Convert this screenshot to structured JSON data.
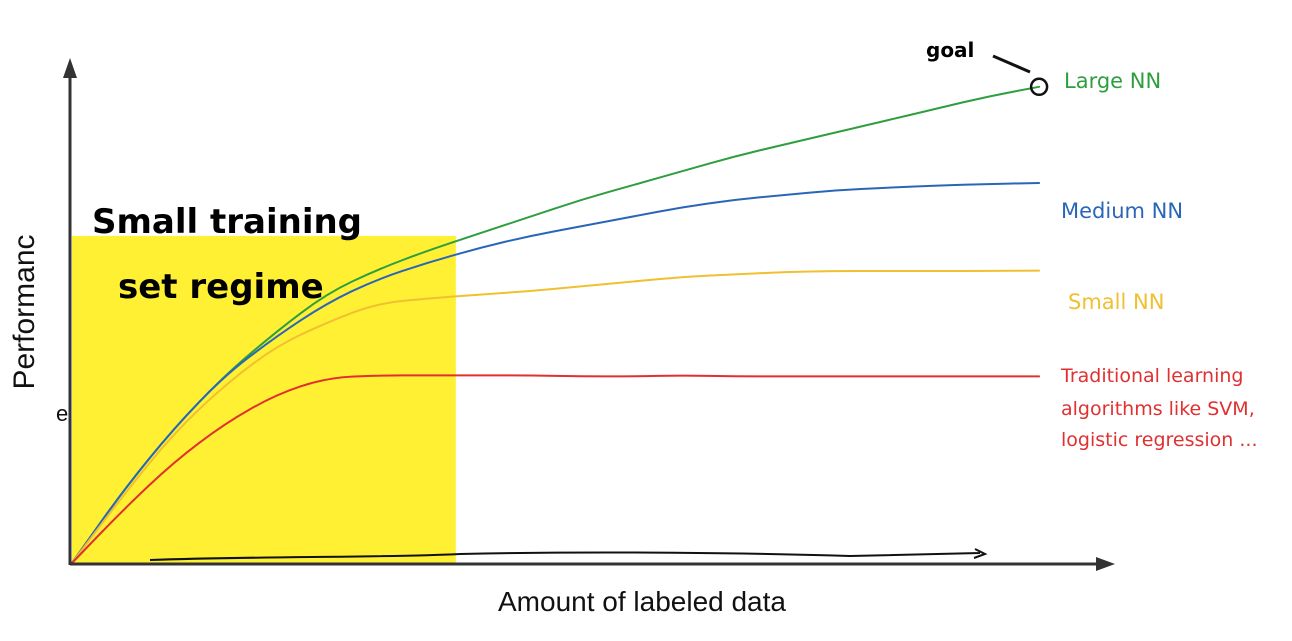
{
  "chart_data": {
    "type": "line",
    "title": "",
    "xlabel": "Amount of labeled data",
    "ylabel": "Performance",
    "xlim": [
      0,
      100
    ],
    "ylim": [
      0,
      100
    ],
    "x": [
      0,
      5,
      10,
      15,
      20,
      25,
      30,
      35,
      40,
      45,
      50,
      55,
      60,
      65,
      70,
      75,
      80,
      85,
      90,
      95
    ],
    "series": [
      {
        "name": "Large NN",
        "color": "#2e9e3e",
        "values": [
          0,
          15,
          28,
          39,
          48,
          56,
          61,
          65,
          68.5,
          72,
          75.5,
          78.5,
          81.5,
          84.5,
          87,
          89.5,
          92,
          94.5,
          97,
          99
        ]
      },
      {
        "name": "Medium NN",
        "color": "#2a66b8",
        "values": [
          0,
          15,
          28,
          39,
          47,
          54,
          59,
          62.5,
          65.5,
          68,
          70,
          72,
          74,
          75.5,
          76.5,
          77.5,
          78,
          78.5,
          78.8,
          79
        ]
      },
      {
        "name": "Small NN",
        "color": "#f0c030",
        "values": [
          0,
          14,
          27,
          37,
          45,
          50,
          54,
          55,
          55.8,
          56.5,
          57.5,
          58.5,
          59.5,
          60,
          60.5,
          60.7,
          60.7,
          60.7,
          60.7,
          60.8
        ]
      },
      {
        "name": "Traditional learning algorithms like SVM, logistic regression ...",
        "color": "#e03030",
        "values": [
          0,
          11,
          21,
          29,
          35,
          38.5,
          39,
          39,
          39,
          39,
          38.8,
          38.8,
          39,
          38.8,
          38.8,
          38.8,
          38.8,
          38.8,
          38.8,
          38.8
        ]
      }
    ],
    "annotations": {
      "region_label_line1": "Small training",
      "region_label_line2": "set regime",
      "region_color": "#fff033",
      "region_x_end": 38,
      "region_y_end": 68,
      "goal_label": "goal",
      "goal_x": 95,
      "goal_y": 99
    },
    "series_labels": [
      "Large NN",
      "Medium NN",
      "Small NN",
      "Traditional learning",
      "algorithms like SVM,",
      "logistic regression ..."
    ],
    "ylabel_printed": "Performanc",
    "ylabel_tail": "e"
  }
}
